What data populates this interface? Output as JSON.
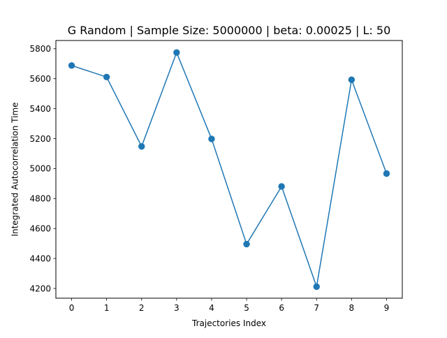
{
  "chart_data": {
    "type": "line",
    "title": "G Random | Sample Size: 5000000 | beta: 0.00025 | L: 50",
    "xlabel": "Trajectories Index",
    "ylabel": "Integrated Autocorrelation Time",
    "x": [
      0,
      1,
      2,
      3,
      4,
      5,
      6,
      7,
      8,
      9
    ],
    "series": [
      {
        "values": [
          5688,
          5611,
          5148,
          5775,
          5198,
          4496,
          4881,
          4212,
          5593,
          4967
        ],
        "color": "#1f77b4",
        "marker": "circle"
      }
    ],
    "xticks": [
      "0",
      "1",
      "2",
      "3",
      "4",
      "5",
      "6",
      "7",
      "8",
      "9"
    ],
    "yticks": [
      "4200",
      "4400",
      "4600",
      "4800",
      "5000",
      "5200",
      "5400",
      "5600",
      "5800"
    ],
    "xlim": [
      -0.45,
      9.45
    ],
    "ylim": [
      4135,
      5855
    ],
    "grid": false,
    "legend": false
  }
}
